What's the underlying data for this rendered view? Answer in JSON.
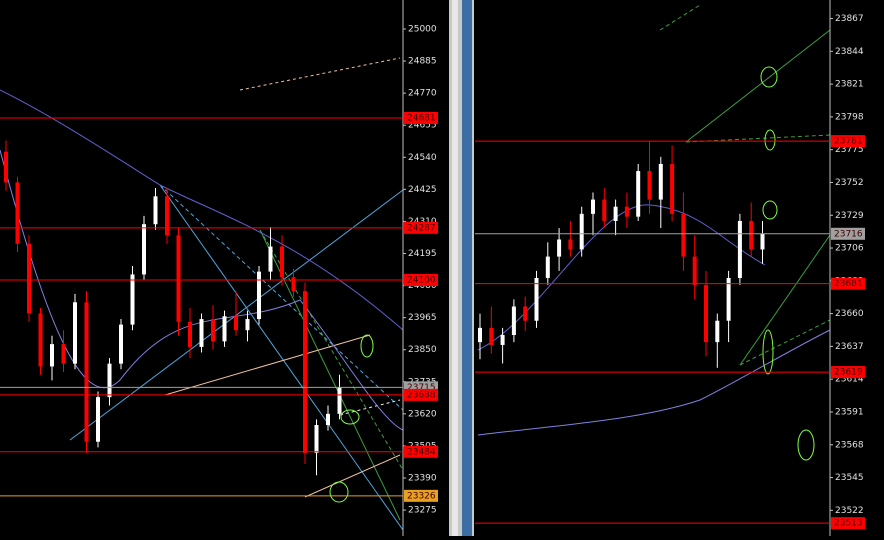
{
  "chart_data": [
    {
      "type": "candlestick",
      "up_color": "#ffffff",
      "down_color": "#ff0000",
      "ylim": [
        23182,
        25104
      ],
      "yticks": [
        25000,
        24885,
        24770,
        24655,
        24540,
        24425,
        24310,
        24195,
        24080,
        23965,
        23850,
        23735,
        23620,
        23505,
        23390,
        23275
      ],
      "candles": [
        [
          24560,
          24600,
          24420,
          24450
        ],
        [
          24450,
          24470,
          24200,
          24230
        ],
        [
          24230,
          24260,
          23950,
          23980
        ],
        [
          23980,
          24000,
          23760,
          23790
        ],
        [
          23790,
          23900,
          23740,
          23870
        ],
        [
          23870,
          23920,
          23770,
          23800
        ],
        [
          23800,
          24050,
          23780,
          24020
        ],
        [
          24020,
          24060,
          23480,
          23520
        ],
        [
          23520,
          23700,
          23500,
          23680
        ],
        [
          23680,
          23820,
          23650,
          23800
        ],
        [
          23800,
          23960,
          23780,
          23940
        ],
        [
          23940,
          24150,
          23920,
          24120
        ],
        [
          24120,
          24330,
          24100,
          24300
        ],
        [
          24300,
          24430,
          24280,
          24400
        ],
        [
          24400,
          24430,
          24230,
          24260
        ],
        [
          24260,
          24290,
          23900,
          23950
        ],
        [
          23950,
          24000,
          23820,
          23860
        ],
        [
          23860,
          23980,
          23840,
          23960
        ],
        [
          23960,
          24010,
          23850,
          23880
        ],
        [
          23880,
          23990,
          23860,
          23970
        ],
        [
          23970,
          24060,
          23900,
          23920
        ],
        [
          23920,
          23990,
          23880,
          23960
        ],
        [
          23960,
          24150,
          23940,
          24130
        ],
        [
          24130,
          24290,
          24100,
          24220
        ],
        [
          24220,
          24260,
          24080,
          24110
        ],
        [
          24110,
          24140,
          24040,
          24060
        ],
        [
          24060,
          24090,
          23440,
          23480
        ],
        [
          23480,
          23600,
          23400,
          23580
        ],
        [
          23580,
          23650,
          23560,
          23620
        ],
        [
          23620,
          23760,
          23600,
          23715
        ]
      ],
      "levels": [
        {
          "value": 24681,
          "color": "#ff0000"
        },
        {
          "value": 24287,
          "color": "#ff0000"
        },
        {
          "value": 24100,
          "color": "#ff0000"
        },
        {
          "value": 23715,
          "color": "#a0a0a0"
        },
        {
          "value": 23688,
          "color": "#ff0000"
        },
        {
          "value": 23484,
          "color": "#ff0000"
        },
        {
          "value": 23326,
          "color": "#e8a020"
        }
      ]
    },
    {
      "type": "candlestick",
      "up_color": "#ffffff",
      "down_color": "#ff0000",
      "ylim": [
        23504,
        23880
      ],
      "yticks": [
        23867,
        23844,
        23821,
        23798,
        23775,
        23752,
        23729,
        23706,
        23683,
        23660,
        23637,
        23614,
        23591,
        23568,
        23545,
        23522
      ],
      "candles": [
        [
          23640,
          23660,
          23628,
          23650
        ],
        [
          23650,
          23665,
          23632,
          23638
        ],
        [
          23638,
          23650,
          23625,
          23645
        ],
        [
          23645,
          23670,
          23640,
          23665
        ],
        [
          23665,
          23672,
          23648,
          23655
        ],
        [
          23655,
          23690,
          23650,
          23685
        ],
        [
          23685,
          23710,
          23680,
          23700
        ],
        [
          23700,
          23720,
          23690,
          23712
        ],
        [
          23712,
          23725,
          23700,
          23705
        ],
        [
          23705,
          23735,
          23700,
          23730
        ],
        [
          23730,
          23745,
          23715,
          23740
        ],
        [
          23740,
          23748,
          23720,
          23725
        ],
        [
          23725,
          23740,
          23715,
          23735
        ],
        [
          23735,
          23745,
          23720,
          23728
        ],
        [
          23728,
          23765,
          23725,
          23760
        ],
        [
          23760,
          23781,
          23730,
          23740
        ],
        [
          23740,
          23770,
          23720,
          23765
        ],
        [
          23765,
          23778,
          23725,
          23730
        ],
        [
          23730,
          23745,
          23690,
          23700
        ],
        [
          23700,
          23715,
          23670,
          23680
        ],
        [
          23680,
          23690,
          23630,
          23640
        ],
        [
          23640,
          23660,
          23622,
          23655
        ],
        [
          23655,
          23690,
          23640,
          23685
        ],
        [
          23685,
          23730,
          23680,
          23725
        ],
        [
          23725,
          23738,
          23700,
          23705
        ],
        [
          23705,
          23725,
          23695,
          23716
        ]
      ],
      "levels": [
        {
          "value": 23781,
          "color": "#ff0000"
        },
        {
          "value": 23716,
          "color": "#a0a0a0"
        },
        {
          "value": 23681,
          "color": "#ff0000"
        },
        {
          "value": 23619,
          "color": "#ff0000"
        },
        {
          "value": 23513,
          "color": "#ff0000"
        }
      ]
    }
  ]
}
